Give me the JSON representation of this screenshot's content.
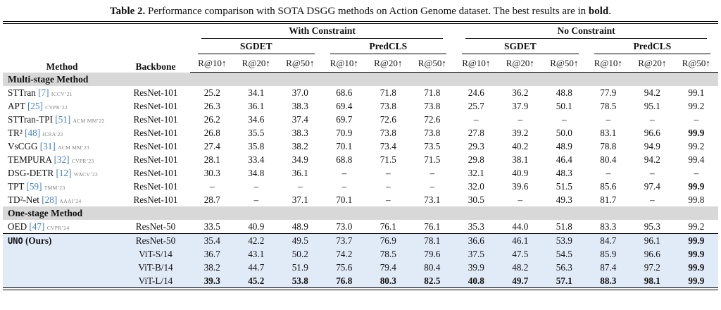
{
  "caption": {
    "label": "Table 2.",
    "body": "Performance comparison with SOTA DSGG methods on Action Genome dataset. The best results are in",
    "bold_word": "bold",
    "period": "."
  },
  "header": {
    "method": "Method",
    "backbone": "Backbone",
    "constraints": [
      "With Constraint",
      "No Constraint"
    ],
    "tasks": [
      "SGDET",
      "PredCLS",
      "SGDET",
      "PredCLS"
    ],
    "metrics": [
      "R@10↑",
      "R@20↑",
      "R@50↑"
    ]
  },
  "table": {
    "sections": [
      {
        "title": "Multi-stage Method",
        "rows": [
          {
            "method": "STTran",
            "cite": "[7]",
            "venue": "ICCV’21",
            "backbone": "ResNet-101",
            "values": [
              "25.2",
              "34.1",
              "37.0",
              "68.6",
              "71.8",
              "71.8",
              "24.6",
              "36.2",
              "48.8",
              "77.9",
              "94.2",
              "99.1"
            ],
            "bold": []
          },
          {
            "method": "APT",
            "cite": "[25]",
            "venue": "CVPR’22",
            "backbone": "ResNet-101",
            "values": [
              "26.3",
              "36.1",
              "38.3",
              "69.4",
              "73.8",
              "73.8",
              "25.7",
              "37.9",
              "50.1",
              "78.5",
              "95.1",
              "99.2"
            ],
            "bold": []
          },
          {
            "method": "STTran-TPI",
            "cite": "[51]",
            "venue": "ACM MM’22",
            "backbone": "ResNet-101",
            "values": [
              "26.2",
              "34.6",
              "37.4",
              "69.7",
              "72.6",
              "72.6",
              "–",
              "–",
              "–",
              "–",
              "–",
              "–"
            ],
            "bold": []
          },
          {
            "method": "TR²",
            "cite": "[48]",
            "venue": "ICRA’23",
            "backbone": "ResNet-101",
            "values": [
              "26.8",
              "35.5",
              "38.3",
              "70.9",
              "73.8",
              "73.8",
              "27.8",
              "39.2",
              "50.0",
              "83.1",
              "96.6",
              "99.9"
            ],
            "bold": [
              11
            ]
          },
          {
            "method": "VsCGG",
            "cite": "[31]",
            "venue": "ACM MM’23",
            "backbone": "ResNet-101",
            "values": [
              "27.4",
              "35.8",
              "38.2",
              "70.1",
              "73.4",
              "73.5",
              "29.3",
              "40.2",
              "48.9",
              "78.8",
              "94.9",
              "99.2"
            ],
            "bold": []
          },
          {
            "method": "TEMPURA",
            "cite": "[32]",
            "venue": "CVPR’23",
            "backbone": "ResNet-101",
            "values": [
              "28.1",
              "33.4",
              "34.9",
              "68.8",
              "71.5",
              "71.5",
              "29.8",
              "38.1",
              "46.4",
              "80.4",
              "94.2",
              "99.4"
            ],
            "bold": []
          },
          {
            "method": "DSG-DETR",
            "cite": "[12]",
            "venue": "WACV’23",
            "backbone": "ResNet-101",
            "values": [
              "30.3",
              "34.8",
              "36.1",
              "–",
              "–",
              "–",
              "32.1",
              "40.9",
              "48.3",
              "–",
              "–",
              "–"
            ],
            "bold": []
          },
          {
            "method": "TPT",
            "cite": "[59]",
            "venue": "TMM’23",
            "backbone": "ResNet-101",
            "values": [
              "–",
              "–",
              "–",
              "–",
              "–",
              "–",
              "32.0",
              "39.6",
              "51.5",
              "85.6",
              "97.4",
              "99.9"
            ],
            "bold": [
              11
            ]
          },
          {
            "method": "TD²-Net",
            "cite": "[28]",
            "venue": "AAAI’24",
            "backbone": "ResNet-101",
            "values": [
              "28.7",
              "–",
              "37.1",
              "70.1",
              "–",
              "73.1",
              "30.5",
              "–",
              "49.3",
              "81.7",
              "–",
              "99.8"
            ],
            "bold": []
          }
        ]
      },
      {
        "title": "One-stage Method",
        "rows": [
          {
            "method": "OED",
            "cite": "[47]",
            "venue": "CVPR’24",
            "backbone": "ResNet-50",
            "values": [
              "33.5",
              "40.9",
              "48.9",
              "73.0",
              "76.1",
              "76.1",
              "35.3",
              "44.0",
              "51.8",
              "83.3",
              "95.3",
              "99.2"
            ],
            "bold": []
          }
        ]
      }
    ],
    "ours": {
      "name": "UNO",
      "suffix": "(Ours)",
      "rows": [
        {
          "backbone": "ResNet-50",
          "values": [
            "35.4",
            "42.2",
            "49.5",
            "73.7",
            "76.9",
            "78.1",
            "36.6",
            "46.1",
            "53.9",
            "84.7",
            "96.1",
            "99.9"
          ],
          "bold": [
            11
          ]
        },
        {
          "backbone": "ViT-S/14",
          "values": [
            "36.7",
            "43.1",
            "50.2",
            "74.2",
            "78.5",
            "79.6",
            "37.5",
            "47.5",
            "54.5",
            "85.9",
            "96.6",
            "99.9"
          ],
          "bold": [
            11
          ]
        },
        {
          "backbone": "ViT-B/14",
          "values": [
            "38.2",
            "44.7",
            "51.9",
            "75.6",
            "79.4",
            "80.4",
            "39.9",
            "48.2",
            "56.3",
            "87.4",
            "97.2",
            "99.9"
          ],
          "bold": [
            11
          ]
        },
        {
          "backbone": "ViT-L/14",
          "values": [
            "39.3",
            "45.2",
            "53.8",
            "76.8",
            "80.3",
            "82.5",
            "40.8",
            "49.7",
            "57.1",
            "88.3",
            "98.1",
            "99.9"
          ],
          "bold": [
            0,
            1,
            2,
            3,
            4,
            5,
            6,
            7,
            8,
            9,
            10,
            11
          ]
        }
      ]
    }
  }
}
